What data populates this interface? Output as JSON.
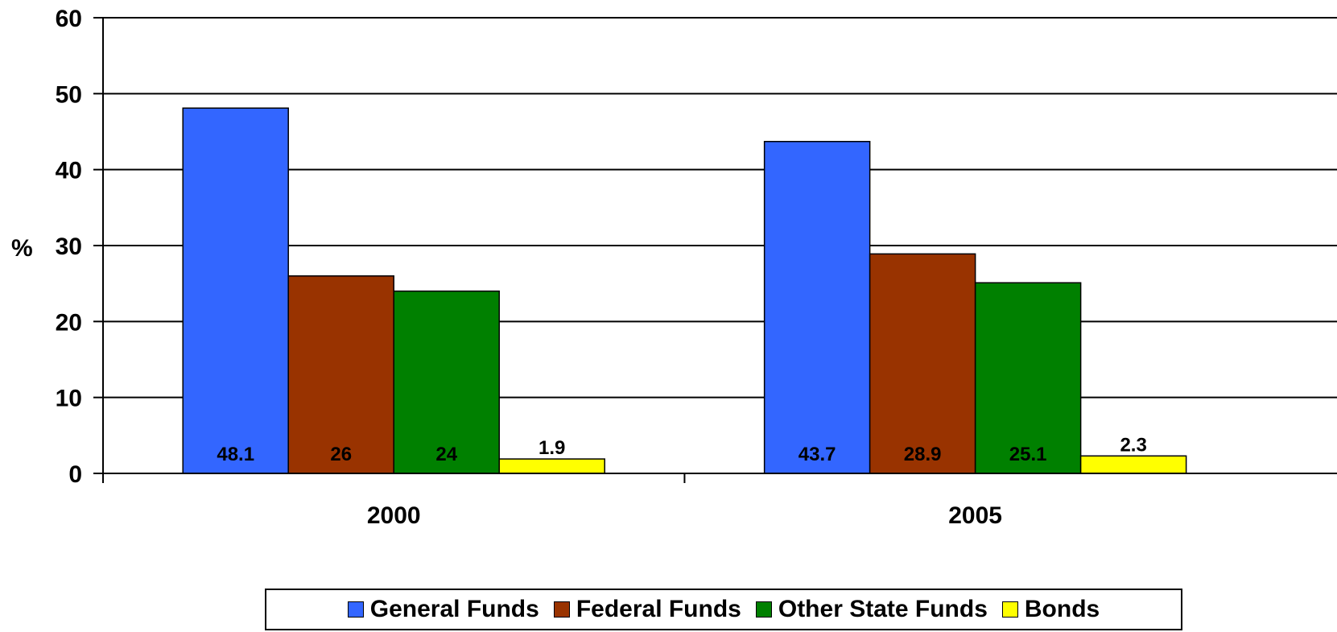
{
  "chart_data": {
    "type": "bar",
    "categories": [
      "2000",
      "2005"
    ],
    "series": [
      {
        "name": "General Funds",
        "color": "#3366FF",
        "values": [
          48.1,
          43.7
        ],
        "labels": [
          "48.1",
          "43.7"
        ]
      },
      {
        "name": "Federal Funds",
        "color": "#993300",
        "values": [
          26,
          28.9
        ],
        "labels": [
          "26",
          "28.9"
        ]
      },
      {
        "name": "Other State Funds",
        "color": "#008000",
        "values": [
          24,
          25.1
        ],
        "labels": [
          "24",
          "25.1"
        ]
      },
      {
        "name": "Bonds",
        "color": "#FFFF00",
        "values": [
          1.9,
          2.3
        ],
        "labels": [
          "1.9",
          "2.3"
        ]
      }
    ],
    "ylabel": "%",
    "ylim": [
      0,
      60
    ],
    "yticks": [
      "0",
      "10",
      "20",
      "30",
      "40",
      "50",
      "60"
    ],
    "grid": true,
    "legend_position": "bottom"
  }
}
